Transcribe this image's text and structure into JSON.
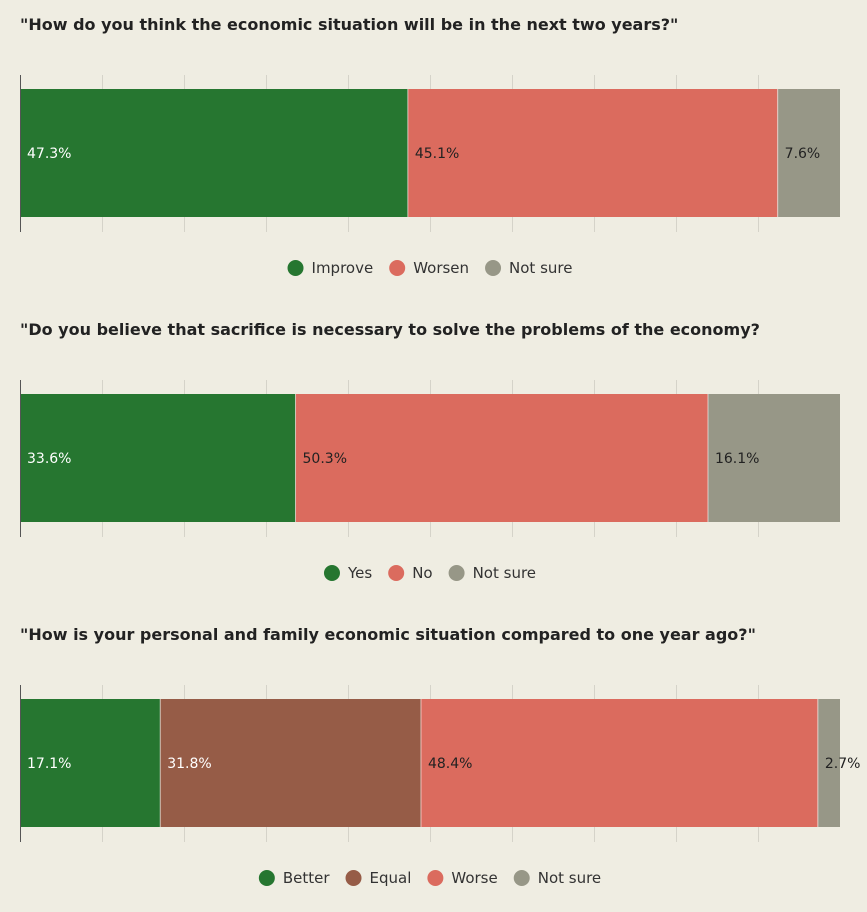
{
  "colors": {
    "background": "#efede2",
    "green": "#267630",
    "red": "#db6b5e",
    "brown": "#965c47",
    "gray": "#979787",
    "grid": "#d5d3c9",
    "axis": "#555555",
    "text_dark": "#222222",
    "text_light": "#ffffff"
  },
  "chart_data": [
    {
      "type": "bar",
      "orientation": "horizontal-stacked",
      "title": "\"How do you think the economic situation will be in the next two years?\"",
      "xlim": [
        0,
        100
      ],
      "grid": true,
      "legend": "bottom-center",
      "series": [
        {
          "name": "Improve",
          "value": 47.3,
          "label": "47.3%",
          "color": "#267630",
          "label_color": "#ffffff"
        },
        {
          "name": "Worsen",
          "value": 45.1,
          "label": "45.1%",
          "color": "#db6b5e",
          "label_color": "#222222"
        },
        {
          "name": "Not sure",
          "value": 7.6,
          "label": "7.6%",
          "color": "#979787",
          "label_color": "#222222"
        }
      ]
    },
    {
      "type": "bar",
      "orientation": "horizontal-stacked",
      "title": "\"Do you believe that sacrifice is necessary to solve the problems of the economy?",
      "xlim": [
        0,
        100
      ],
      "grid": true,
      "legend": "bottom-center",
      "series": [
        {
          "name": "Yes",
          "value": 33.6,
          "label": "33.6%",
          "color": "#267630",
          "label_color": "#ffffff"
        },
        {
          "name": "No",
          "value": 50.3,
          "label": "50.3%",
          "color": "#db6b5e",
          "label_color": "#222222"
        },
        {
          "name": "Not sure",
          "value": 16.1,
          "label": "16.1%",
          "color": "#979787",
          "label_color": "#222222"
        }
      ]
    },
    {
      "type": "bar",
      "orientation": "horizontal-stacked",
      "title": "\"How is your personal and family economic situation compared to one year ago?\"",
      "xlim": [
        0,
        100
      ],
      "grid": true,
      "legend": "bottom-center",
      "series": [
        {
          "name": "Better",
          "value": 17.1,
          "label": "17.1%",
          "color": "#267630",
          "label_color": "#ffffff"
        },
        {
          "name": "Equal",
          "value": 31.8,
          "label": "31.8%",
          "color": "#965c47",
          "label_color": "#ffffff"
        },
        {
          "name": "Worse",
          "value": 48.4,
          "label": "48.4%",
          "color": "#db6b5e",
          "label_color": "#222222"
        },
        {
          "name": "Not sure",
          "value": 2.7,
          "label": "2.7%",
          "color": "#979787",
          "label_color": "#222222"
        }
      ]
    }
  ]
}
